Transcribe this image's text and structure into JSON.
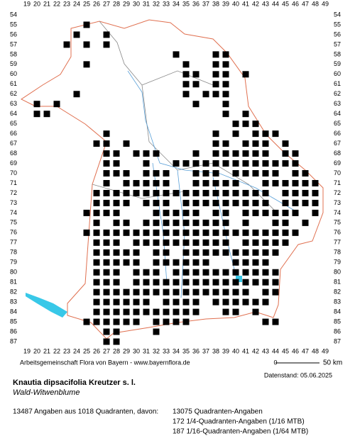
{
  "column_labels": [
    19,
    20,
    21,
    22,
    23,
    24,
    25,
    26,
    27,
    28,
    29,
    30,
    31,
    32,
    33,
    34,
    35,
    36,
    37,
    38,
    39,
    40,
    41,
    42,
    43,
    44,
    45,
    46,
    47,
    48,
    49
  ],
  "row_labels": [
    54,
    55,
    56,
    57,
    58,
    59,
    60,
    61,
    62,
    63,
    64,
    65,
    66,
    67,
    68,
    69,
    70,
    71,
    72,
    73,
    74,
    75,
    76,
    77,
    78,
    79,
    80,
    81,
    82,
    83,
    84,
    85,
    86,
    87
  ],
  "credit": "Arbeitsgemeinschaft Flora von Bayern - www.bayernflora.de",
  "scale": {
    "start": 0,
    "end": "50 km"
  },
  "date": "Datenstand: 05.06.2025",
  "species": {
    "name": "Knautia dipsacifolia Kreutzer s. l.",
    "common_name": "Wald-Witwenblume"
  },
  "stats": {
    "summary": "13487 Angaben aus 1018 Quadranten, davon:",
    "lines": [
      "13075 Quadranten-Angaben",
      "172 1/4-Quadranten-Angaben (1/16 MTB)",
      "187 1/16-Quadranten-Angaben (1/64 MTB)"
    ]
  }
}
